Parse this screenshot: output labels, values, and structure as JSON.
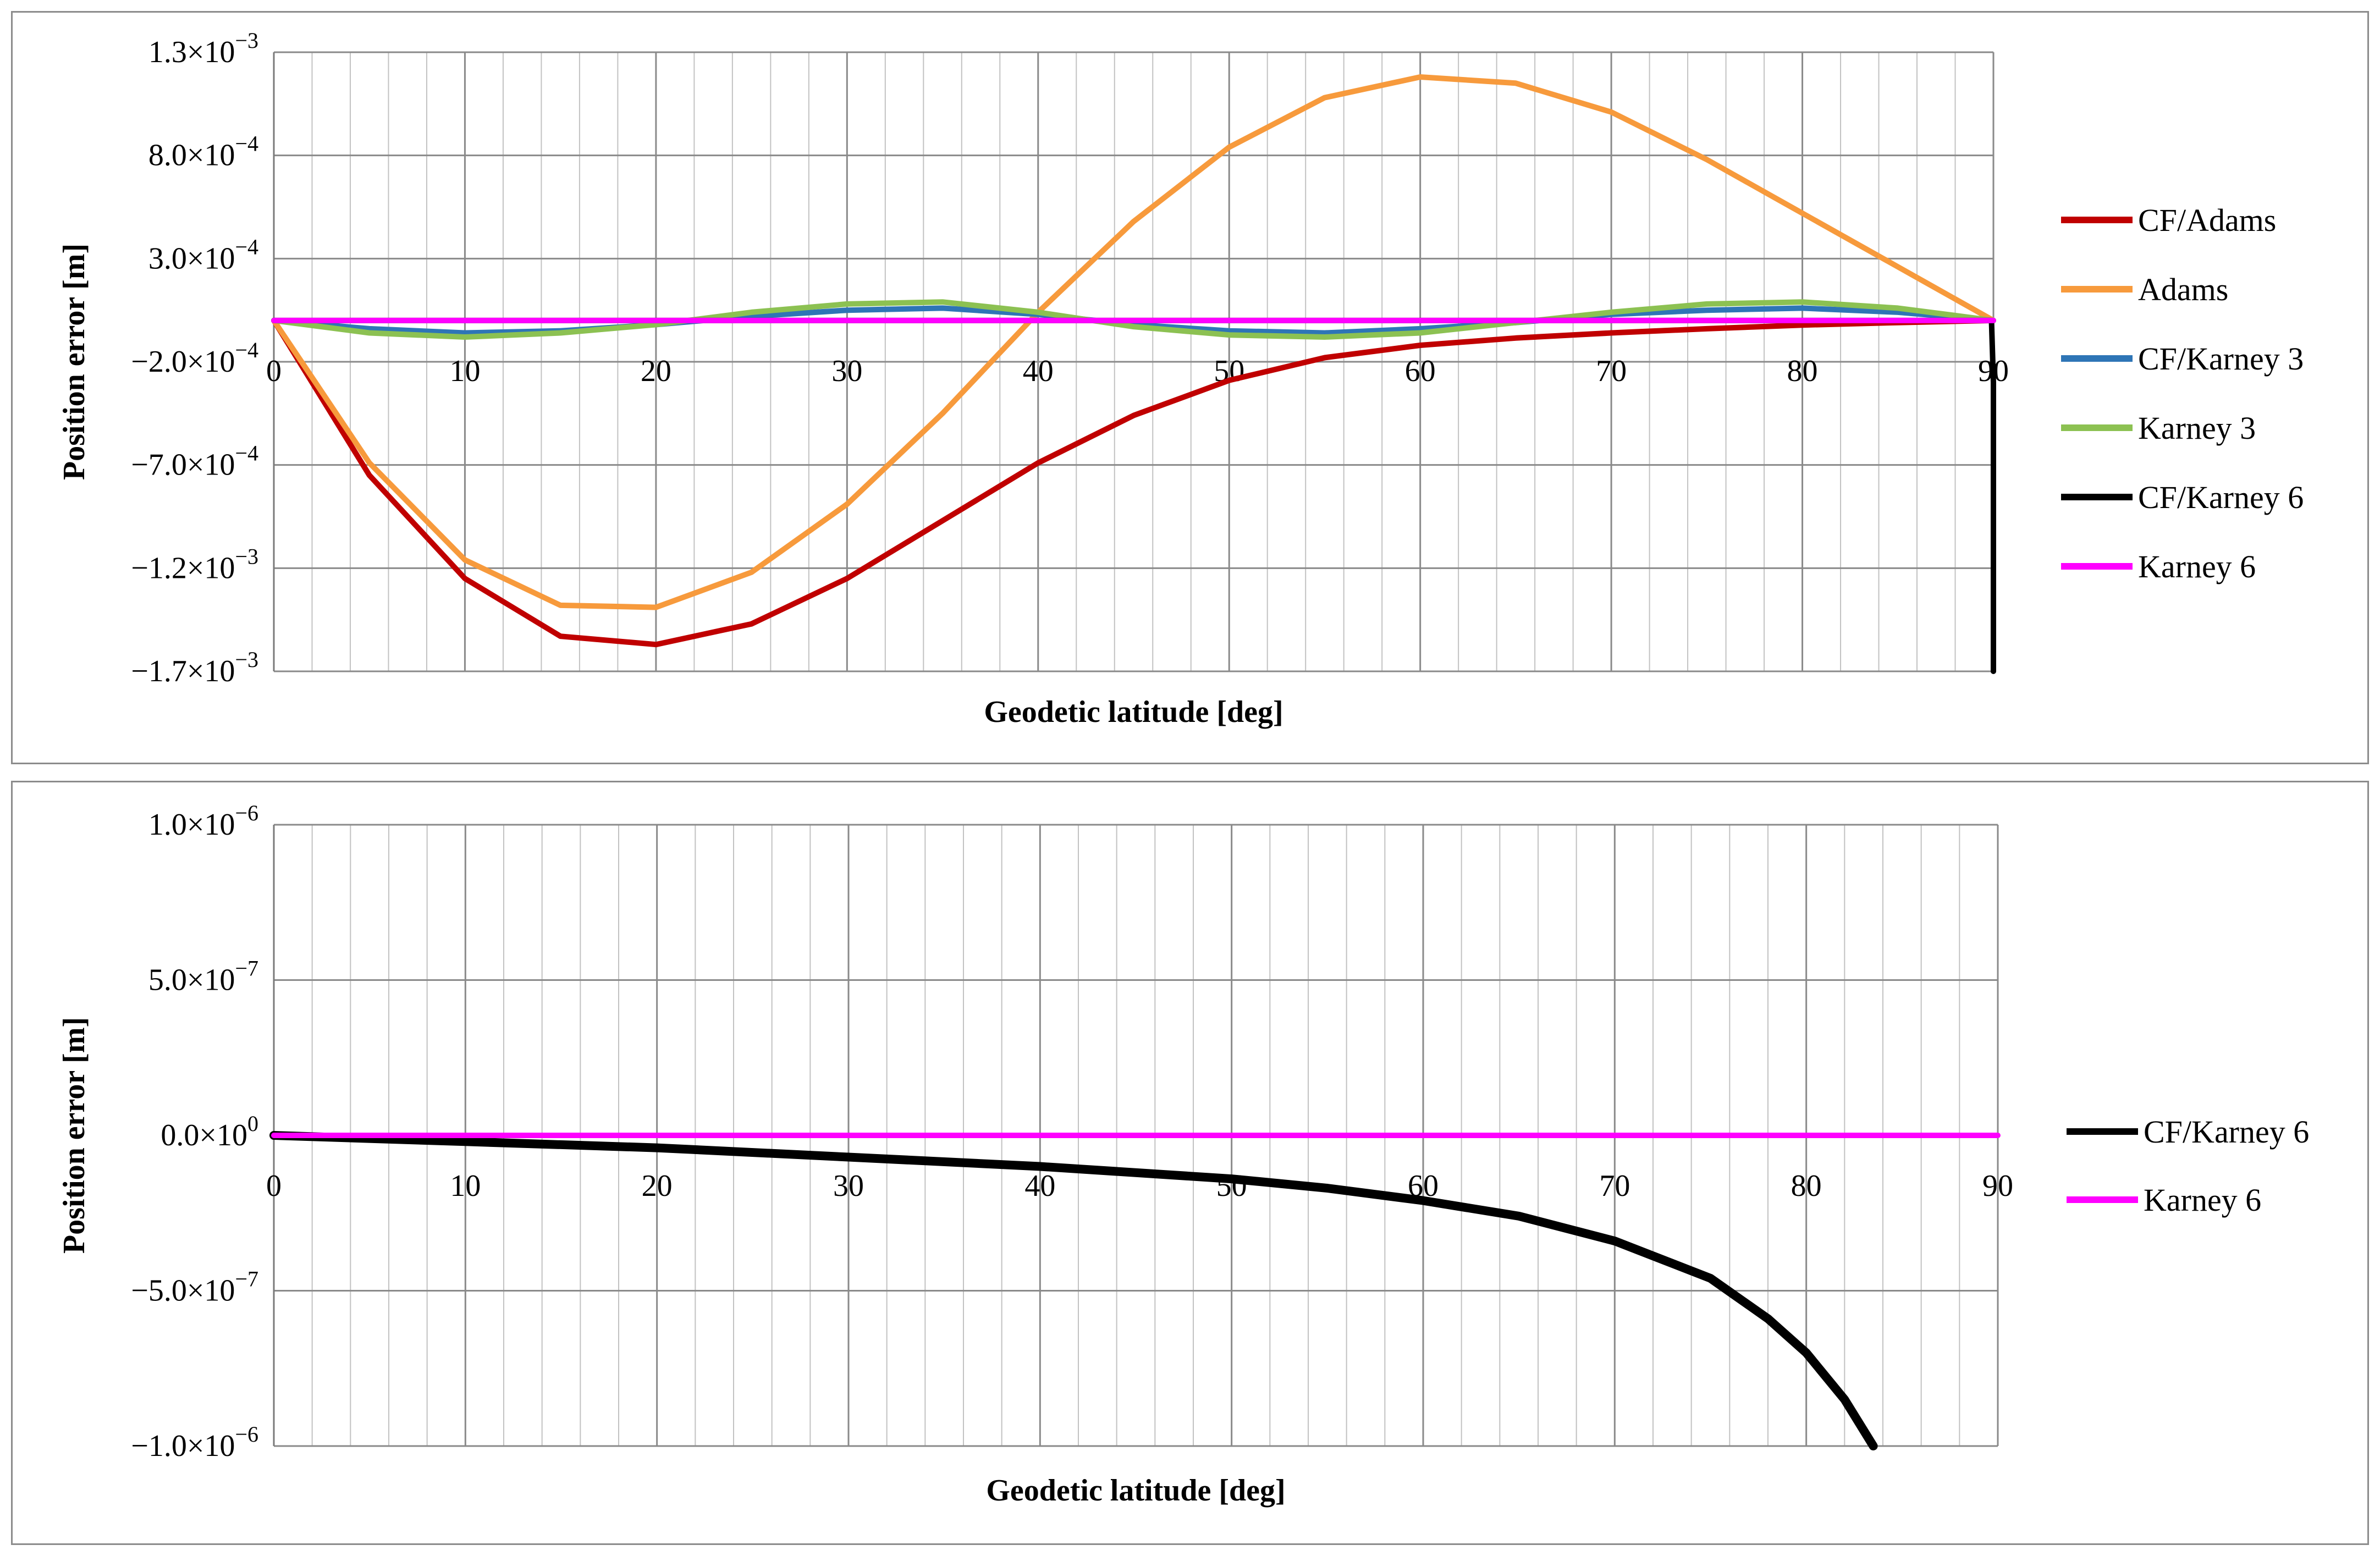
{
  "chart_data": [
    {
      "type": "line",
      "xlabel": "Geodetic latitude [deg]",
      "ylabel": "Position error [m]",
      "xlim": [
        0,
        90
      ],
      "ylim": [
        -0.0017,
        0.0013
      ],
      "x_ticks": [
        "0",
        "10",
        "20",
        "30",
        "40",
        "50",
        "60",
        "70",
        "80",
        "90"
      ],
      "y_ticks": [
        {
          "value": 0.0013,
          "mant": "1.3",
          "exp": "−3"
        },
        {
          "value": 0.0008,
          "mant": "8.0",
          "exp": "−4"
        },
        {
          "value": 0.0003,
          "mant": "3.0",
          "exp": "−4"
        },
        {
          "value": -0.0002,
          "mant": "−2.0",
          "exp": "−4"
        },
        {
          "value": -0.0007,
          "mant": "−7.0",
          "exp": "−4"
        },
        {
          "value": -0.0012,
          "mant": "−1.2",
          "exp": "−3"
        },
        {
          "value": -0.0017,
          "mant": "−1.7",
          "exp": "−3"
        }
      ],
      "grid": true,
      "legend_position": "right",
      "series": [
        {
          "name": "CF/Adams",
          "color": "#c00000",
          "x": [
            0,
            5,
            10,
            15,
            20,
            25,
            30,
            35,
            40,
            45,
            50,
            55,
            60,
            65,
            70,
            75,
            80,
            85,
            90
          ],
          "y": [
            0,
            -0.00075,
            -0.00125,
            -0.00153,
            -0.00157,
            -0.00147,
            -0.00125,
            -0.00097,
            -0.00069,
            -0.00046,
            -0.00029,
            -0.00018,
            -0.00012,
            -8.5e-05,
            -6e-05,
            -4e-05,
            -2.2e-05,
            -1e-05,
            0
          ]
        },
        {
          "name": "Adams",
          "color": "#f79a3c",
          "x": [
            0,
            5,
            10,
            15,
            20,
            25,
            30,
            35,
            40,
            45,
            50,
            55,
            60,
            65,
            70,
            75,
            80,
            85,
            90
          ],
          "y": [
            0,
            -0.00069,
            -0.00116,
            -0.00138,
            -0.00139,
            -0.00122,
            -0.00089,
            -0.00045,
            4e-05,
            0.00048,
            0.00084,
            0.00108,
            0.00118,
            0.00115,
            0.00101,
            0.00078,
            0.00052,
            0.00026,
            0
          ]
        },
        {
          "name": "CF/Karney 3",
          "color": "#2e75b6",
          "x": [
            0,
            5,
            10,
            15,
            20,
            25,
            30,
            35,
            40,
            45,
            50,
            55,
            60,
            65,
            70,
            75,
            80,
            85,
            90
          ],
          "y": [
            0,
            -4e-05,
            -6e-05,
            -5e-05,
            -2e-05,
            2e-05,
            5e-05,
            6e-05,
            3e-05,
            -2e-05,
            -5e-05,
            -6e-05,
            -4e-05,
            -1e-05,
            3e-05,
            5e-05,
            6e-05,
            4e-05,
            0
          ]
        },
        {
          "name": "Karney 3",
          "color": "#8cc152",
          "x": [
            0,
            5,
            10,
            15,
            20,
            25,
            30,
            35,
            40,
            45,
            50,
            55,
            60,
            65,
            70,
            75,
            80,
            85,
            90
          ],
          "y": [
            0,
            -6e-05,
            -8e-05,
            -6e-05,
            -2e-05,
            4e-05,
            8e-05,
            9e-05,
            4e-05,
            -3e-05,
            -7e-05,
            -8e-05,
            -6e-05,
            -1e-05,
            4e-05,
            8e-05,
            9e-05,
            6e-05,
            0
          ]
        },
        {
          "name": "CF/Karney 6",
          "color": "#000000",
          "x": [
            0,
            45,
            89.9,
            90,
            90
          ],
          "y": [
            0,
            0,
            0,
            -0.0003,
            -0.0017
          ]
        },
        {
          "name": "Karney 6",
          "color": "#ff00ff",
          "x": [
            0,
            90
          ],
          "y": [
            0,
            0
          ]
        }
      ]
    },
    {
      "type": "line",
      "xlabel": "Geodetic latitude [deg]",
      "ylabel": "Position error [m]",
      "xlim": [
        0,
        90
      ],
      "ylim": [
        -1e-06,
        1e-06
      ],
      "x_ticks": [
        "0",
        "10",
        "20",
        "30",
        "40",
        "50",
        "60",
        "70",
        "80",
        "90"
      ],
      "y_ticks": [
        {
          "value": 1e-06,
          "mant": "1.0",
          "exp": "−6"
        },
        {
          "value": 5e-07,
          "mant": "5.0",
          "exp": "−7"
        },
        {
          "value": 0,
          "mant": "0.0",
          "exp": "0"
        },
        {
          "value": -5e-07,
          "mant": "−5.0",
          "exp": "−7"
        },
        {
          "value": -1e-06,
          "mant": "−1.0",
          "exp": "−6"
        }
      ],
      "grid": true,
      "legend_position": "right",
      "series": [
        {
          "name": "CF/Karney 6",
          "color": "#000000",
          "x": [
            0,
            10,
            20,
            30,
            40,
            50,
            55,
            60,
            65,
            70,
            75,
            78,
            80,
            82,
            83.5
          ],
          "y": [
            0,
            -2e-08,
            -4e-08,
            -7e-08,
            -1e-07,
            -1.4e-07,
            -1.7e-07,
            -2.1e-07,
            -2.6e-07,
            -3.4e-07,
            -4.6e-07,
            -5.9e-07,
            -7e-07,
            -8.5e-07,
            -1e-06
          ]
        },
        {
          "name": "Karney 6",
          "color": "#ff00ff",
          "x": [
            0,
            90
          ],
          "y": [
            0,
            0
          ]
        }
      ]
    }
  ]
}
